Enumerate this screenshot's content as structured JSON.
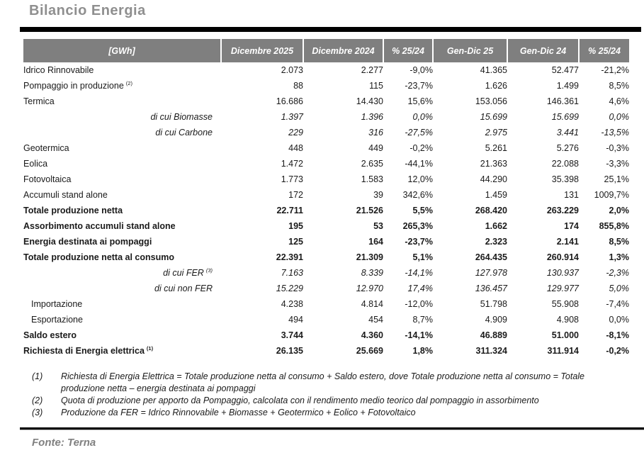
{
  "page": {
    "title": "Bilancio Energia",
    "source": "Fonte: Terna"
  },
  "colors": {
    "header_bg": "#7f7f7f",
    "title_gray": "#8f8f8f",
    "source_gray": "#808080"
  },
  "table": {
    "unit": "[GWh]",
    "headers": [
      "[GWh]",
      "Dicembre 2025",
      "Dicembre 2024",
      "% 25/24",
      "Gen-Dic 25",
      "Gen-Dic 24",
      "% 25/24"
    ],
    "rows": [
      {
        "label": "Idrico Rinnovabile",
        "sup": "",
        "style": "normal",
        "values": [
          "2.073",
          "2.277",
          "-9,0%",
          "41.365",
          "52.477",
          "-21,2%"
        ]
      },
      {
        "label": "Pompaggio in produzione",
        "sup": "(2)",
        "style": "normal",
        "values": [
          "88",
          "115",
          "-23,7%",
          "1.626",
          "1.499",
          "8,5%"
        ]
      },
      {
        "label": "Termica",
        "sup": "",
        "style": "normal",
        "values": [
          "16.686",
          "14.430",
          "15,6%",
          "153.056",
          "146.361",
          "4,6%"
        ]
      },
      {
        "label": "di cui Biomasse",
        "sup": "",
        "style": "dicui",
        "values": [
          "1.397",
          "1.396",
          "0,0%",
          "15.699",
          "15.699",
          "0,0%"
        ]
      },
      {
        "label": "di cui Carbone",
        "sup": "",
        "style": "dicui",
        "values": [
          "229",
          "316",
          "-27,5%",
          "2.975",
          "3.441",
          "-13,5%"
        ]
      },
      {
        "label": "Geotermica",
        "sup": "",
        "style": "normal",
        "values": [
          "448",
          "449",
          "-0,2%",
          "5.261",
          "5.276",
          "-0,3%"
        ]
      },
      {
        "label": "Eolica",
        "sup": "",
        "style": "normal",
        "values": [
          "1.472",
          "2.635",
          "-44,1%",
          "21.363",
          "22.088",
          "-3,3%"
        ]
      },
      {
        "label": "Fotovoltaica",
        "sup": "",
        "style": "normal",
        "values": [
          "1.773",
          "1.583",
          "12,0%",
          "44.290",
          "35.398",
          "25,1%"
        ]
      },
      {
        "label": "Accumuli stand alone",
        "sup": "",
        "style": "normal",
        "values": [
          "172",
          "39",
          "342,6%",
          "1.459",
          "131",
          "1009,7%"
        ]
      },
      {
        "label": "Totale produzione netta",
        "sup": "",
        "style": "bold",
        "values": [
          "22.711",
          "21.526",
          "5,5%",
          "268.420",
          "263.229",
          "2,0%"
        ]
      },
      {
        "label": "Assorbimento accumuli stand alone",
        "sup": "",
        "style": "bold",
        "values": [
          "195",
          "53",
          "265,3%",
          "1.662",
          "174",
          "855,8%"
        ]
      },
      {
        "label": "Energia destinata ai pompaggi",
        "sup": "",
        "style": "bold",
        "values": [
          "125",
          "164",
          "-23,7%",
          "2.323",
          "2.141",
          "8,5%"
        ]
      },
      {
        "label": "Totale produzione netta al consumo",
        "sup": "",
        "style": "bold",
        "values": [
          "22.391",
          "21.309",
          "5,1%",
          "264.435",
          "260.914",
          "1,3%"
        ]
      },
      {
        "label": "di cui FER",
        "sup": "(3)",
        "style": "dicui",
        "values": [
          "7.163",
          "8.339",
          "-14,1%",
          "127.978",
          "130.937",
          "-2,3%"
        ]
      },
      {
        "label": "di cui non FER",
        "sup": "",
        "style": "dicui",
        "values": [
          "15.229",
          "12.970",
          "17,4%",
          "136.457",
          "129.977",
          "5,0%"
        ]
      },
      {
        "label": "Importazione",
        "sup": "",
        "style": "indent",
        "values": [
          "4.238",
          "4.814",
          "-12,0%",
          "51.798",
          "55.908",
          "-7,4%"
        ]
      },
      {
        "label": "Esportazione",
        "sup": "",
        "style": "indent",
        "values": [
          "494",
          "454",
          "8,7%",
          "4.909",
          "4.908",
          "0,0%"
        ]
      },
      {
        "label": "Saldo estero",
        "sup": "",
        "style": "bold",
        "values": [
          "3.744",
          "4.360",
          "-14,1%",
          "46.889",
          "51.000",
          "-8,1%"
        ]
      },
      {
        "label": "Richiesta di Energia elettrica",
        "sup": "(1)",
        "style": "bold",
        "values": [
          "26.135",
          "25.669",
          "1,8%",
          "311.324",
          "311.914",
          "-0,2%"
        ]
      }
    ]
  },
  "footnotes": [
    {
      "num": "(1)",
      "text": "Richiesta di Energia Elettrica = Totale produzione netta al consumo + Saldo estero, dove Totale produzione netta al consumo = Totale produzione netta – energia destinata ai pompaggi"
    },
    {
      "num": "(2)",
      "text": "Quota di produzione per apporto da Pompaggio, calcolata con il rendimento medio teorico dal pompaggio in assorbimento"
    },
    {
      "num": "(3)",
      "text": "Produzione da FER = Idrico Rinnovabile + Biomasse + Geotermico + Eolico + Fotovoltaico"
    }
  ]
}
